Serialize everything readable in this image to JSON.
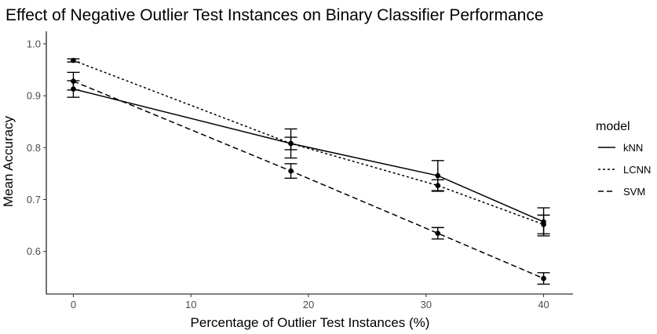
{
  "chart_data": {
    "type": "line",
    "title": "Effect of Negative Outlier Test Instances on Binary Classifier Performance",
    "xlabel": "Percentage of Outlier Test Instances (%)",
    "ylabel": "Mean Accuracy",
    "xlim": [
      -2.3,
      42.5
    ],
    "ylim": [
      0.518,
      1.024
    ],
    "xticks": [
      "0",
      "10",
      "20",
      "30",
      "40"
    ],
    "yticks": [
      "0.6",
      "0.7",
      "0.8",
      "0.9",
      "1.0"
    ],
    "grid": false,
    "legend": {
      "title": "model",
      "position": "right"
    },
    "series": [
      {
        "name": "kNN",
        "line_style": "solid",
        "x": [
          0,
          18.5,
          31,
          40
        ],
        "y": [
          0.913,
          0.808,
          0.746,
          0.657
        ],
        "err": [
          0.016,
          0.028,
          0.029,
          0.027
        ]
      },
      {
        "name": "LCNN",
        "line_style": "dotted",
        "x": [
          0,
          18.5,
          31,
          40
        ],
        "y": [
          0.968,
          0.808,
          0.727,
          0.652
        ],
        "err": [
          0.003,
          0.012,
          0.011,
          0.018
        ]
      },
      {
        "name": "SVM",
        "line_style": "dashed",
        "x": [
          0,
          18.5,
          31,
          40
        ],
        "y": [
          0.928,
          0.755,
          0.635,
          0.548
        ],
        "err": [
          0.017,
          0.014,
          0.011,
          0.011
        ]
      }
    ]
  }
}
